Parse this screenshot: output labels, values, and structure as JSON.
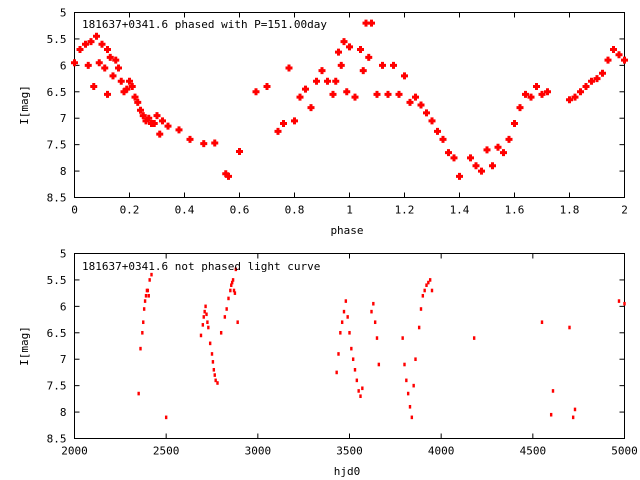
{
  "chart_data": [
    {
      "type": "scatter",
      "title": "181637+0341.6 phased with P=151.00day",
      "xlabel": "phase",
      "ylabel": "I[mag]",
      "xlim": [
        0,
        2
      ],
      "ylim": [
        8.5,
        5
      ],
      "y_inverted": true,
      "x_ticks": [
        "0",
        "0.2",
        "0.4",
        "0.6",
        "0.8",
        "1",
        "1.2",
        "1.4",
        "1.6",
        "1.8",
        "2"
      ],
      "y_ticks": [
        "5",
        "5.5",
        "6",
        "6.5",
        "7",
        "7.5",
        "8",
        "8.5"
      ],
      "grid": false,
      "marker": "filled-plus",
      "color": "#ff0000",
      "series": [
        {
          "x": [
            0.0,
            0.02,
            0.04,
            0.05,
            0.06,
            0.07,
            0.08,
            0.09,
            0.1,
            0.11,
            0.12,
            0.12,
            0.13,
            0.14,
            0.15,
            0.16,
            0.17,
            0.18,
            0.19,
            0.2,
            0.21,
            0.22,
            0.23,
            0.24,
            0.25,
            0.26,
            0.27,
            0.28,
            0.29,
            0.3,
            0.31,
            0.32,
            0.34,
            0.38,
            0.42,
            0.47,
            0.51,
            0.55,
            0.56,
            0.6,
            0.66,
            0.7,
            0.74,
            0.76,
            0.78,
            0.8,
            0.82,
            0.84,
            0.86,
            0.88,
            0.9,
            0.92,
            0.94,
            0.95,
            0.96,
            0.97,
            0.98,
            0.99,
            1.0,
            1.02,
            1.04,
            1.05,
            1.06,
            1.07,
            1.08,
            1.1,
            1.12,
            1.14,
            1.16,
            1.18,
            1.2,
            1.22,
            1.24,
            1.26,
            1.28,
            1.3,
            1.32,
            1.34,
            1.36,
            1.38,
            1.4,
            1.44,
            1.46,
            1.48,
            1.5,
            1.52,
            1.54,
            1.56,
            1.58,
            1.6,
            1.62,
            1.64,
            1.66,
            1.68,
            1.7,
            1.72,
            1.8,
            1.82,
            1.84,
            1.86,
            1.88,
            1.9,
            1.92,
            1.94,
            1.96,
            1.98,
            2.0
          ],
          "y": [
            5.95,
            5.7,
            5.6,
            6.0,
            5.55,
            6.4,
            5.45,
            5.95,
            5.6,
            6.05,
            5.7,
            6.55,
            5.85,
            6.2,
            5.9,
            6.05,
            6.3,
            6.5,
            6.45,
            6.3,
            6.4,
            6.6,
            6.7,
            6.85,
            6.95,
            7.05,
            7.0,
            7.1,
            7.1,
            6.95,
            7.3,
            7.05,
            7.15,
            7.22,
            7.4,
            7.48,
            7.47,
            8.05,
            8.1,
            7.63,
            6.5,
            6.4,
            7.25,
            7.1,
            6.05,
            7.05,
            6.6,
            6.45,
            6.8,
            6.3,
            6.1,
            6.3,
            6.55,
            6.3,
            5.75,
            6.0,
            5.55,
            6.5,
            5.65,
            6.6,
            5.7,
            6.1,
            5.2,
            5.85,
            5.2,
            6.55,
            6.0,
            6.55,
            6.0,
            6.55,
            6.2,
            6.7,
            6.6,
            6.75,
            6.9,
            7.05,
            7.25,
            7.4,
            7.65,
            7.75,
            8.1,
            7.75,
            7.9,
            8.0,
            7.6,
            7.9,
            7.55,
            7.65,
            7.4,
            7.1,
            6.8,
            6.55,
            6.6,
            6.4,
            6.55,
            6.5,
            6.65,
            6.6,
            6.5,
            6.4,
            6.3,
            6.25,
            6.15,
            5.9,
            5.7,
            5.8,
            5.9
          ]
        }
      ]
    },
    {
      "type": "scatter",
      "title": "181637+0341.6 not phased light curve",
      "xlabel": "hjd0",
      "ylabel": "I[mag]",
      "xlim": [
        2000,
        5000
      ],
      "ylim": [
        8.5,
        5
      ],
      "y_inverted": true,
      "x_ticks": [
        "2000",
        "2500",
        "3000",
        "3500",
        "4000",
        "4500",
        "5000"
      ],
      "y_ticks": [
        "5",
        "5.5",
        "6",
        "6.5",
        "7",
        "7.5",
        "8",
        "8.5"
      ],
      "grid": false,
      "marker": "dot",
      "color": "#ff0000",
      "series": [
        {
          "x": [
            2350,
            2360,
            2370,
            2375,
            2380,
            2385,
            2390,
            2395,
            2400,
            2405,
            2410,
            2420,
            2500,
            2690,
            2700,
            2705,
            2710,
            2715,
            2720,
            2725,
            2730,
            2740,
            2750,
            2755,
            2760,
            2765,
            2770,
            2780,
            2800,
            2820,
            2830,
            2840,
            2850,
            2855,
            2860,
            2865,
            2870,
            2875,
            2880,
            2890,
            3430,
            3440,
            3450,
            3460,
            3470,
            3480,
            3490,
            3500,
            3510,
            3520,
            3530,
            3540,
            3550,
            3560,
            3570,
            3620,
            3630,
            3640,
            3650,
            3660,
            3790,
            3800,
            3810,
            3820,
            3830,
            3840,
            3850,
            3860,
            3880,
            3890,
            3900,
            3910,
            3920,
            3930,
            3940,
            3950,
            4180,
            4550,
            4600,
            4610,
            4700,
            4720,
            4730,
            4970,
            5000
          ],
          "y": [
            7.65,
            6.8,
            6.5,
            6.3,
            6.05,
            5.9,
            5.8,
            5.7,
            5.7,
            5.8,
            5.5,
            5.4,
            8.1,
            6.55,
            6.35,
            6.2,
            6.1,
            6.0,
            6.15,
            6.3,
            6.4,
            6.7,
            6.9,
            7.05,
            7.2,
            7.3,
            7.4,
            7.45,
            6.5,
            6.2,
            6.05,
            5.85,
            5.7,
            5.6,
            5.55,
            5.5,
            5.7,
            5.75,
            5.3,
            6.3,
            7.25,
            6.9,
            6.5,
            6.3,
            6.1,
            5.9,
            6.2,
            6.5,
            6.8,
            7.0,
            7.2,
            7.4,
            7.6,
            7.7,
            7.55,
            6.1,
            5.95,
            6.3,
            6.6,
            7.1,
            6.6,
            7.1,
            7.4,
            7.65,
            7.9,
            8.1,
            7.5,
            7.0,
            6.4,
            6.05,
            5.8,
            5.7,
            5.6,
            5.55,
            5.5,
            5.7,
            6.6,
            6.3,
            8.05,
            7.6,
            6.4,
            8.1,
            7.95,
            5.9,
            5.95
          ]
        }
      ]
    }
  ]
}
